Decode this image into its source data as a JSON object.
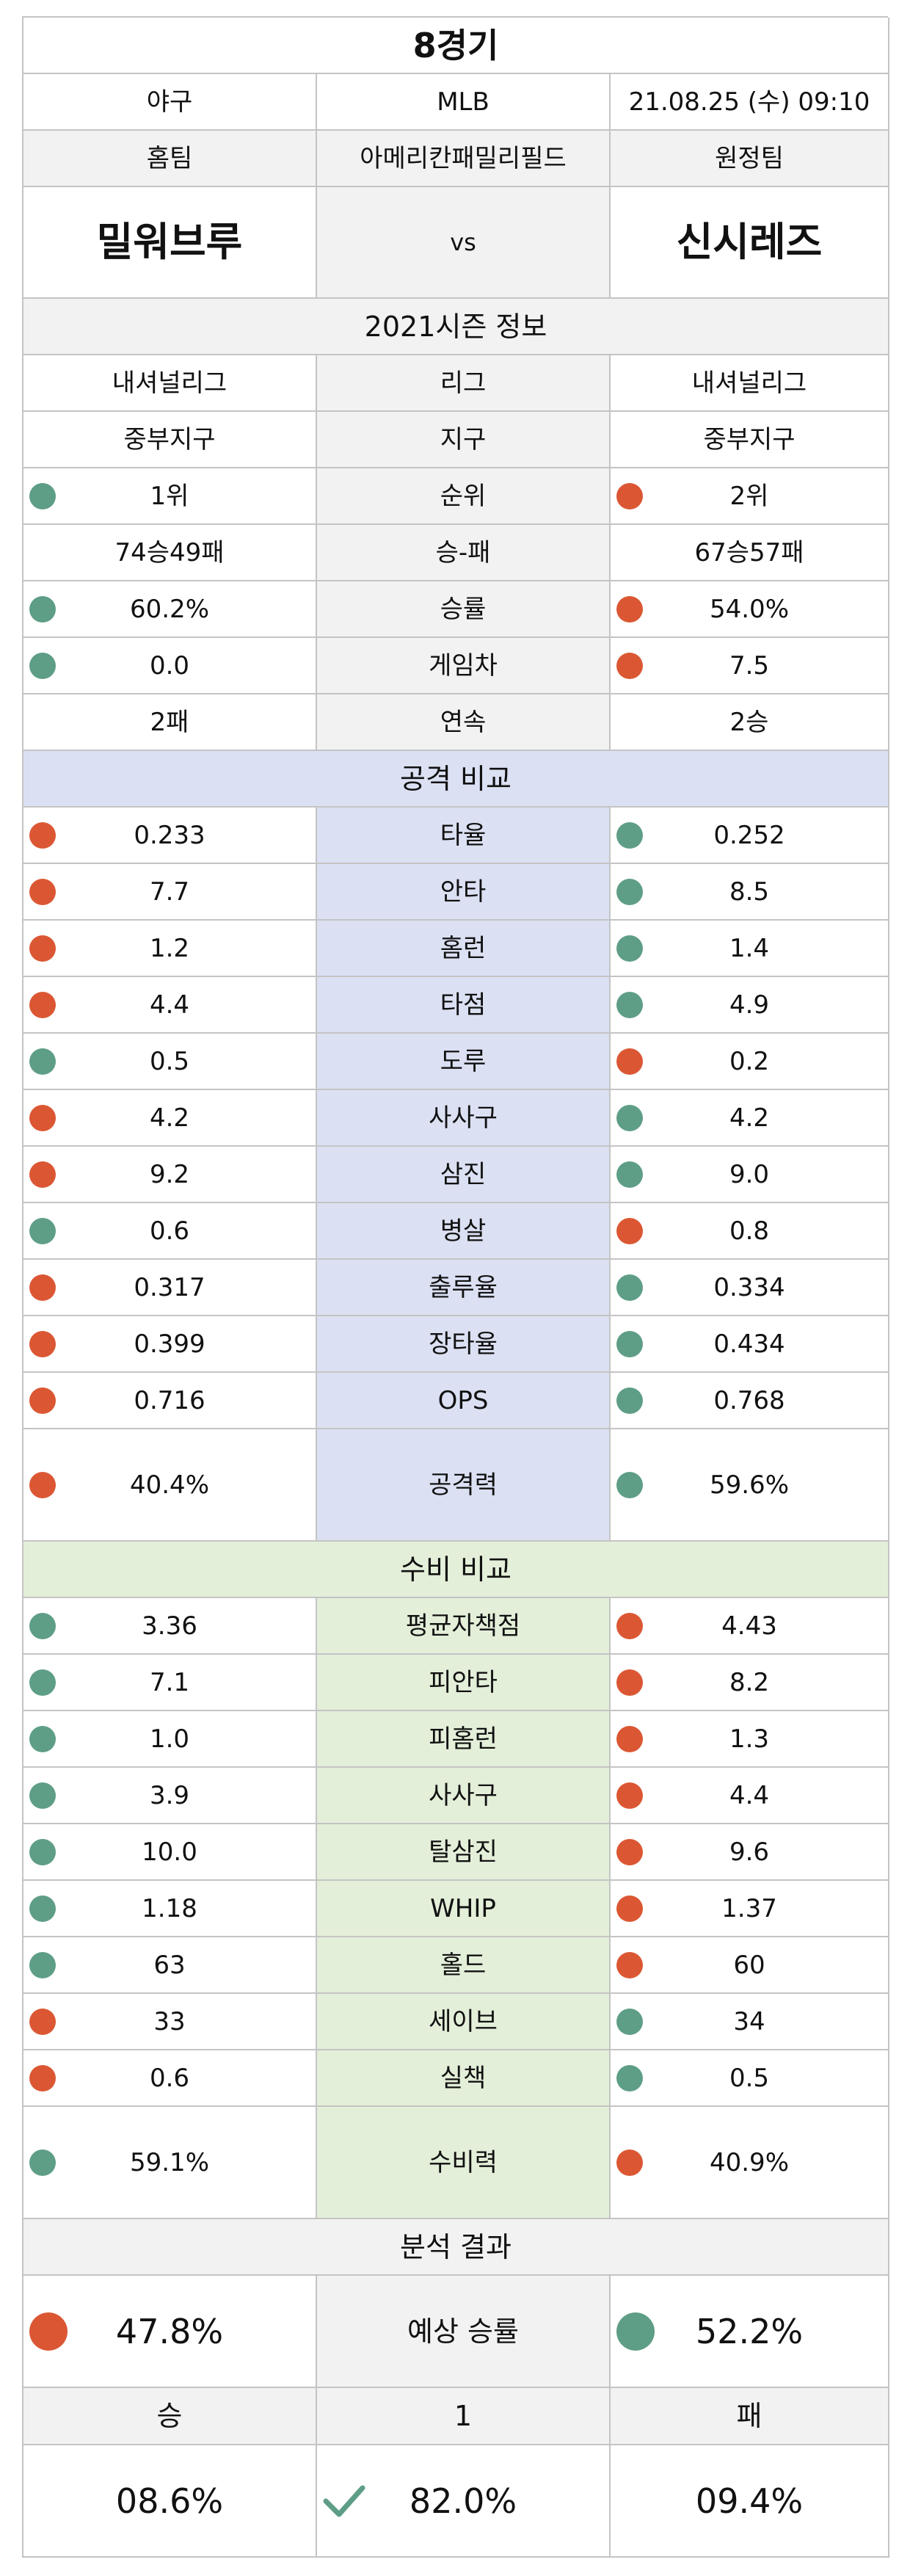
{
  "header": {
    "game": "8경기"
  },
  "info": {
    "sport": "야구",
    "league": "MLB",
    "datetime": "21.08.25 (수) 09:10"
  },
  "teams_row": {
    "home_label": "홈팀",
    "stadium": "아메리칸패밀리필드",
    "away_label": "원정팀"
  },
  "teams": {
    "home": "밀워브루",
    "vs": "vs",
    "away": "신시레즈"
  },
  "season": {
    "title": "2021시즌 정보",
    "rows": [
      {
        "label": "리그",
        "home": "내셔널리그",
        "away": "내셔널리그",
        "home_dot": "",
        "away_dot": ""
      },
      {
        "label": "지구",
        "home": "중부지구",
        "away": "중부지구",
        "home_dot": "",
        "away_dot": ""
      },
      {
        "label": "순위",
        "home": "1위",
        "away": "2위",
        "home_dot": "#5e9e86",
        "away_dot": "#db5733"
      },
      {
        "label": "승-패",
        "home": "74승49패",
        "away": "67승57패",
        "home_dot": "",
        "away_dot": ""
      },
      {
        "label": "승률",
        "home": "60.2%",
        "away": "54.0%",
        "home_dot": "#5e9e86",
        "away_dot": "#db5733"
      },
      {
        "label": "게임차",
        "home": "0.0",
        "away": "7.5",
        "home_dot": "#5e9e86",
        "away_dot": "#db5733"
      },
      {
        "label": "연속",
        "home": "2패",
        "away": "2승",
        "home_dot": "",
        "away_dot": ""
      }
    ]
  },
  "offense": {
    "title": "공격 비교",
    "rows": [
      {
        "label": "타율",
        "home": "0.233",
        "away": "0.252",
        "home_dot": "#db5733",
        "away_dot": "#5e9e86"
      },
      {
        "label": "안타",
        "home": "7.7",
        "away": "8.5",
        "home_dot": "#db5733",
        "away_dot": "#5e9e86"
      },
      {
        "label": "홈런",
        "home": "1.2",
        "away": "1.4",
        "home_dot": "#db5733",
        "away_dot": "#5e9e86"
      },
      {
        "label": "타점",
        "home": "4.4",
        "away": "4.9",
        "home_dot": "#db5733",
        "away_dot": "#5e9e86"
      },
      {
        "label": "도루",
        "home": "0.5",
        "away": "0.2",
        "home_dot": "#5e9e86",
        "away_dot": "#db5733"
      },
      {
        "label": "사사구",
        "home": "4.2",
        "away": "4.2",
        "home_dot": "#db5733",
        "away_dot": "#5e9e86"
      },
      {
        "label": "삼진",
        "home": "9.2",
        "away": "9.0",
        "home_dot": "#db5733",
        "away_dot": "#5e9e86"
      },
      {
        "label": "병살",
        "home": "0.6",
        "away": "0.8",
        "home_dot": "#5e9e86",
        "away_dot": "#db5733"
      },
      {
        "label": "출루율",
        "home": "0.317",
        "away": "0.334",
        "home_dot": "#db5733",
        "away_dot": "#5e9e86"
      },
      {
        "label": "장타율",
        "home": "0.399",
        "away": "0.434",
        "home_dot": "#db5733",
        "away_dot": "#5e9e86"
      },
      {
        "label": "OPS",
        "home": "0.716",
        "away": "0.768",
        "home_dot": "#db5733",
        "away_dot": "#5e9e86"
      },
      {
        "label": "공격력",
        "home": "40.4%",
        "away": "59.6%",
        "home_dot": "#db5733",
        "away_dot": "#5e9e86",
        "tall": true
      }
    ]
  },
  "defense": {
    "title": "수비 비교",
    "rows": [
      {
        "label": "평균자책점",
        "home": "3.36",
        "away": "4.43",
        "home_dot": "#5e9e86",
        "away_dot": "#db5733"
      },
      {
        "label": "피안타",
        "home": "7.1",
        "away": "8.2",
        "home_dot": "#5e9e86",
        "away_dot": "#db5733"
      },
      {
        "label": "피홈런",
        "home": "1.0",
        "away": "1.3",
        "home_dot": "#5e9e86",
        "away_dot": "#db5733"
      },
      {
        "label": "사사구",
        "home": "3.9",
        "away": "4.4",
        "home_dot": "#5e9e86",
        "away_dot": "#db5733"
      },
      {
        "label": "탈삼진",
        "home": "10.0",
        "away": "9.6",
        "home_dot": "#5e9e86",
        "away_dot": "#db5733"
      },
      {
        "label": "WHIP",
        "home": "1.18",
        "away": "1.37",
        "home_dot": "#5e9e86",
        "away_dot": "#db5733"
      },
      {
        "label": "홀드",
        "home": "63",
        "away": "60",
        "home_dot": "#5e9e86",
        "away_dot": "#db5733"
      },
      {
        "label": "세이브",
        "home": "33",
        "away": "34",
        "home_dot": "#db5733",
        "away_dot": "#5e9e86"
      },
      {
        "label": "실책",
        "home": "0.6",
        "away": "0.5",
        "home_dot": "#db5733",
        "away_dot": "#5e9e86"
      },
      {
        "label": "수비력",
        "home": "59.1%",
        "away": "40.9%",
        "home_dot": "#5e9e86",
        "away_dot": "#db5733",
        "tall": true
      }
    ]
  },
  "analysis": {
    "title": "분석 결과",
    "expected_label": "예상 승률",
    "home_pct": "47.8%",
    "away_pct": "52.2%",
    "home_dot": "#db5733",
    "away_dot": "#5e9e86"
  },
  "outcome": {
    "win_label": "승",
    "draw_label": "1",
    "loss_label": "패",
    "win_pct": "08.6%",
    "draw_pct": "82.0%",
    "loss_pct": "09.4%",
    "pick_icon": "checkmark-icon",
    "pick_color": "#5e9e86"
  }
}
